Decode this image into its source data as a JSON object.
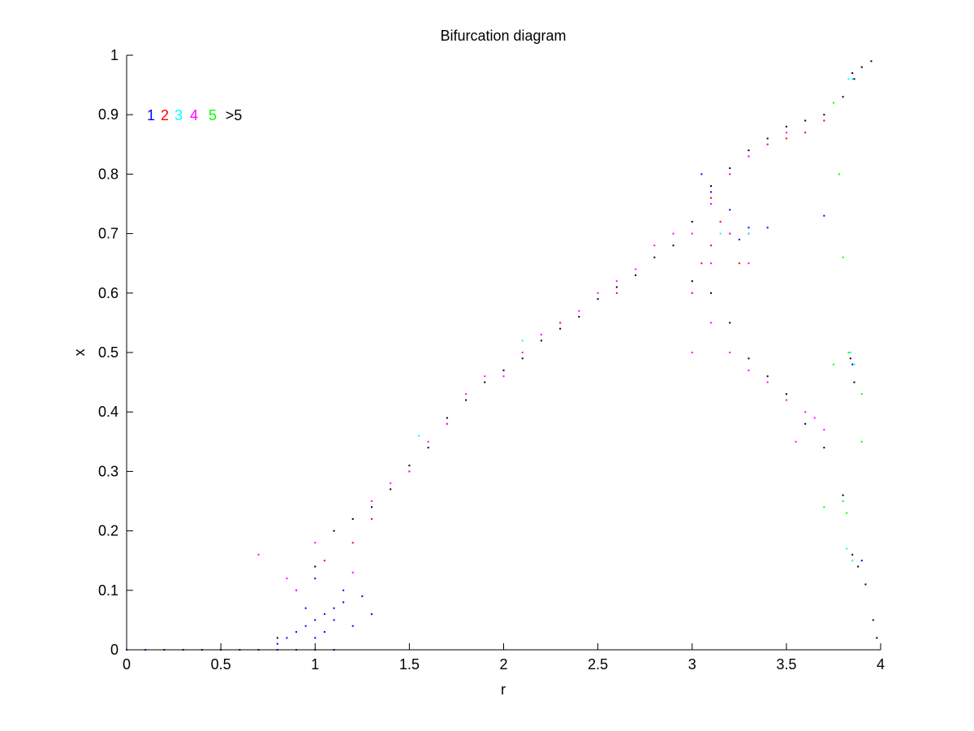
{
  "chart_data": {
    "type": "scatter",
    "title": "Bifurcation diagram",
    "xlabel": "r",
    "ylabel": "x",
    "xlim": [
      0,
      4
    ],
    "ylim": [
      0,
      1
    ],
    "xticks": [
      0,
      0.5,
      1,
      1.5,
      2,
      2.5,
      3,
      3.5,
      4
    ],
    "xtick_labels": [
      "0",
      "0.5",
      "1",
      "1.5",
      "2",
      "2.5",
      "3",
      "3.5",
      "4"
    ],
    "yticks": [
      0,
      0.1,
      0.2,
      0.3,
      0.4,
      0.5,
      0.6,
      0.7,
      0.8,
      0.9,
      1
    ],
    "ytick_labels": [
      "0",
      "0.1",
      "0.2",
      "0.3",
      "0.4",
      "0.5",
      "0.6",
      "0.7",
      "0.8",
      "0.9",
      "1"
    ],
    "grid": false,
    "legend_position": "top-left",
    "legend": [
      {
        "label": "1",
        "color": "#0000ff"
      },
      {
        "label": "2",
        "color": "#ff0000"
      },
      {
        "label": "3",
        "color": "#00ffff"
      },
      {
        "label": "4",
        "color": "#ff00ff"
      },
      {
        "label": "5",
        "color": "#00ff00"
      },
      {
        "label": ">5",
        "color": "#000000"
      }
    ],
    "series": [
      {
        "name": "1",
        "color": "#0000ff",
        "points": [
          [
            0.0,
            0.0
          ],
          [
            0.1,
            0.0
          ],
          [
            0.2,
            0.0
          ],
          [
            0.3,
            0.0
          ],
          [
            0.4,
            0.0
          ],
          [
            0.5,
            0.0
          ],
          [
            0.6,
            0.0
          ],
          [
            0.7,
            0.0
          ],
          [
            0.8,
            0.0
          ],
          [
            0.9,
            0.0
          ],
          [
            1.0,
            0.0
          ],
          [
            1.1,
            0.0
          ],
          [
            0.8,
            0.01
          ],
          [
            0.85,
            0.02
          ],
          [
            0.9,
            0.03
          ],
          [
            0.95,
            0.04
          ],
          [
            1.0,
            0.05
          ],
          [
            1.05,
            0.06
          ],
          [
            1.1,
            0.07
          ],
          [
            1.15,
            0.08
          ],
          [
            0.9,
            0.1
          ],
          [
            1.0,
            0.02
          ],
          [
            1.05,
            0.03
          ],
          [
            1.1,
            0.05
          ],
          [
            1.2,
            0.04
          ],
          [
            1.25,
            0.09
          ],
          [
            0.95,
            0.07
          ],
          [
            1.0,
            0.12
          ],
          [
            1.15,
            0.1
          ],
          [
            1.3,
            0.06
          ],
          [
            3.05,
            0.8
          ],
          [
            3.1,
            0.77
          ],
          [
            3.2,
            0.74
          ],
          [
            3.3,
            0.7
          ],
          [
            3.4,
            0.71
          ],
          [
            3.25,
            0.69
          ],
          [
            3.3,
            0.71
          ],
          [
            3.7,
            0.73
          ],
          [
            3.9,
            0.15
          ],
          [
            3.85,
            0.48
          ]
        ]
      },
      {
        "name": "2",
        "color": "#ff0000",
        "points": [
          [
            1.05,
            0.15
          ],
          [
            1.2,
            0.18
          ],
          [
            1.3,
            0.22
          ],
          [
            1.5,
            0.3
          ],
          [
            1.7,
            0.38
          ],
          [
            2.0,
            0.47
          ],
          [
            2.3,
            0.55
          ],
          [
            2.6,
            0.6
          ],
          [
            3.1,
            0.76
          ],
          [
            3.2,
            0.8
          ],
          [
            3.3,
            0.83
          ],
          [
            3.4,
            0.85
          ],
          [
            3.5,
            0.86
          ],
          [
            3.6,
            0.87
          ],
          [
            3.7,
            0.89
          ],
          [
            3.1,
            0.68
          ],
          [
            3.2,
            0.7
          ],
          [
            3.25,
            0.65
          ],
          [
            3.15,
            0.72
          ],
          [
            3.3,
            0.7
          ],
          [
            3.0,
            0.6
          ],
          [
            3.05,
            0.65
          ]
        ]
      },
      {
        "name": "3",
        "color": "#00ffff",
        "points": [
          [
            1.55,
            0.36
          ],
          [
            2.1,
            0.52
          ],
          [
            3.15,
            0.7
          ],
          [
            3.3,
            0.7
          ],
          [
            3.83,
            0.96
          ],
          [
            3.85,
            0.96
          ],
          [
            3.84,
            0.5
          ],
          [
            3.86,
            0.48
          ],
          [
            3.82,
            0.17
          ],
          [
            3.85,
            0.15
          ],
          [
            3.0,
            0.62
          ]
        ]
      },
      {
        "name": "4",
        "color": "#ff00ff",
        "points": [
          [
            0.7,
            0.16
          ],
          [
            0.85,
            0.12
          ],
          [
            0.9,
            0.1
          ],
          [
            1.0,
            0.18
          ],
          [
            1.1,
            0.2
          ],
          [
            1.2,
            0.13
          ],
          [
            1.3,
            0.25
          ],
          [
            1.4,
            0.28
          ],
          [
            1.5,
            0.3
          ],
          [
            1.6,
            0.35
          ],
          [
            1.7,
            0.38
          ],
          [
            1.8,
            0.43
          ],
          [
            1.9,
            0.46
          ],
          [
            2.0,
            0.46
          ],
          [
            2.1,
            0.5
          ],
          [
            2.2,
            0.53
          ],
          [
            2.3,
            0.55
          ],
          [
            2.4,
            0.57
          ],
          [
            2.5,
            0.6
          ],
          [
            2.6,
            0.62
          ],
          [
            2.7,
            0.64
          ],
          [
            2.8,
            0.68
          ],
          [
            2.9,
            0.7
          ],
          [
            3.0,
            0.7
          ],
          [
            3.0,
            0.6
          ],
          [
            3.0,
            0.5
          ],
          [
            3.1,
            0.75
          ],
          [
            3.1,
            0.65
          ],
          [
            3.1,
            0.55
          ],
          [
            3.2,
            0.8
          ],
          [
            3.2,
            0.7
          ],
          [
            3.2,
            0.5
          ],
          [
            3.3,
            0.83
          ],
          [
            3.3,
            0.65
          ],
          [
            3.3,
            0.47
          ],
          [
            3.4,
            0.85
          ],
          [
            3.4,
            0.45
          ],
          [
            3.5,
            0.87
          ],
          [
            3.5,
            0.42
          ],
          [
            3.6,
            0.4
          ],
          [
            3.7,
            0.37
          ],
          [
            3.65,
            0.39
          ],
          [
            3.55,
            0.35
          ]
        ]
      },
      {
        "name": "5",
        "color": "#00ff00",
        "points": [
          [
            3.75,
            0.92
          ],
          [
            3.78,
            0.8
          ],
          [
            3.8,
            0.66
          ],
          [
            3.83,
            0.5
          ],
          [
            3.8,
            0.25
          ],
          [
            3.82,
            0.23
          ],
          [
            3.7,
            0.24
          ],
          [
            3.75,
            0.48
          ],
          [
            3.9,
            0.43
          ],
          [
            3.9,
            0.35
          ]
        ]
      },
      {
        "name": ">5",
        "color": "#000000",
        "points": [
          [
            0.8,
            0.02
          ],
          [
            1.0,
            0.14
          ],
          [
            1.1,
            0.2
          ],
          [
            1.2,
            0.22
          ],
          [
            1.3,
            0.24
          ],
          [
            1.4,
            0.27
          ],
          [
            1.5,
            0.31
          ],
          [
            1.6,
            0.34
          ],
          [
            1.7,
            0.39
          ],
          [
            1.8,
            0.42
          ],
          [
            1.9,
            0.45
          ],
          [
            2.0,
            0.47
          ],
          [
            2.1,
            0.49
          ],
          [
            2.2,
            0.52
          ],
          [
            2.3,
            0.54
          ],
          [
            2.4,
            0.56
          ],
          [
            2.5,
            0.59
          ],
          [
            2.6,
            0.61
          ],
          [
            2.7,
            0.63
          ],
          [
            2.8,
            0.66
          ],
          [
            2.9,
            0.68
          ],
          [
            3.0,
            0.72
          ],
          [
            3.0,
            0.62
          ],
          [
            3.1,
            0.78
          ],
          [
            3.1,
            0.6
          ],
          [
            3.2,
            0.81
          ],
          [
            3.2,
            0.55
          ],
          [
            3.3,
            0.84
          ],
          [
            3.3,
            0.49
          ],
          [
            3.4,
            0.86
          ],
          [
            3.4,
            0.46
          ],
          [
            3.5,
            0.88
          ],
          [
            3.5,
            0.43
          ],
          [
            3.6,
            0.89
          ],
          [
            3.6,
            0.38
          ],
          [
            3.7,
            0.9
          ],
          [
            3.7,
            0.34
          ],
          [
            3.8,
            0.93
          ],
          [
            3.8,
            0.26
          ],
          [
            3.85,
            0.97
          ],
          [
            3.9,
            0.98
          ],
          [
            3.95,
            0.99
          ],
          [
            3.86,
            0.96
          ],
          [
            3.88,
            0.14
          ],
          [
            3.92,
            0.11
          ],
          [
            3.96,
            0.05
          ],
          [
            3.98,
            0.02
          ],
          [
            3.85,
            0.16
          ],
          [
            3.84,
            0.49
          ],
          [
            3.86,
            0.45
          ]
        ]
      }
    ]
  }
}
